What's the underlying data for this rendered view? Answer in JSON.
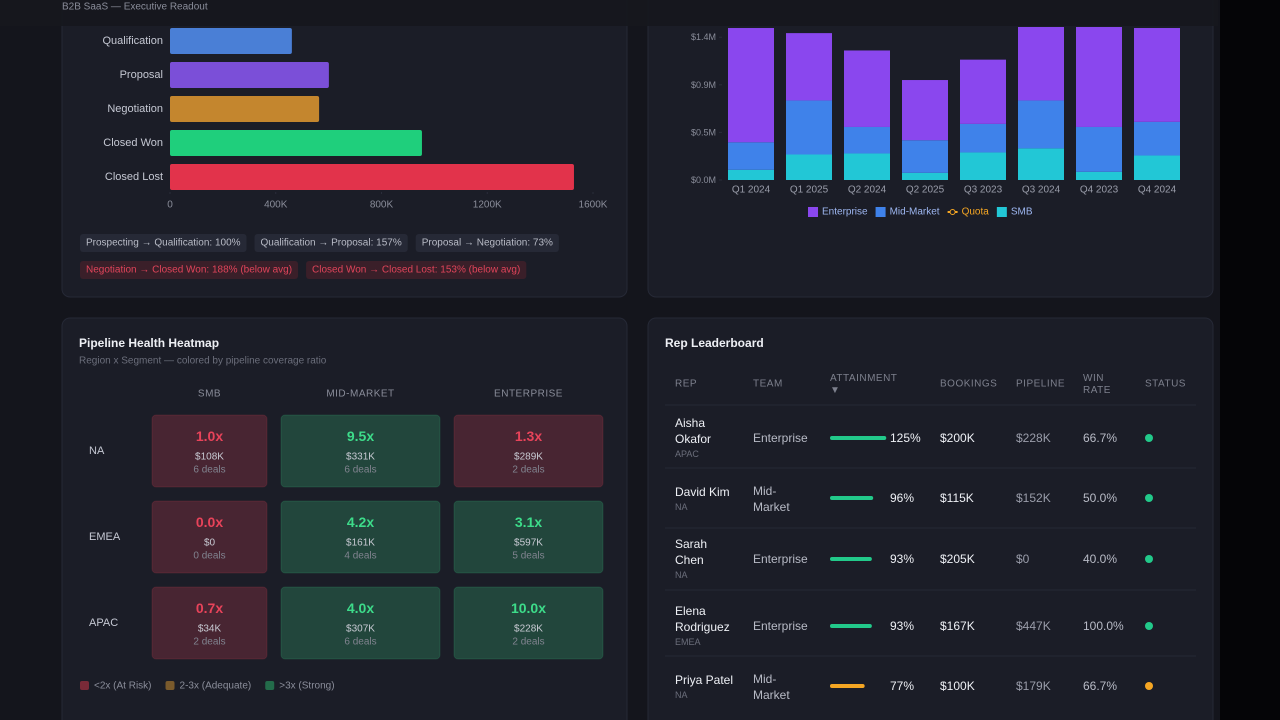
{
  "header": {
    "title": "B2B SaaS — Executive Readout"
  },
  "chart_data": [
    {
      "type": "bar",
      "orientation": "horizontal",
      "categories": [
        "Qualification",
        "Proposal",
        "Negotiation",
        "Closed Won",
        "Closed Lost"
      ],
      "values": [
        461000,
        601000,
        564000,
        953000,
        1528000
      ],
      "colors": [
        "#4a7fd6",
        "#7b4fd8",
        "#c4862e",
        "#1fcf7c",
        "#e2334b"
      ],
      "xlim": [
        0,
        1600000
      ],
      "xticks": [
        0,
        {
          "value": 400000,
          "label": "400K"
        },
        {
          "value": 800000,
          "label": "800K"
        },
        {
          "value": 1200000,
          "label": "1200K"
        },
        {
          "value": 1600000,
          "label": "1600K"
        }
      ]
    },
    {
      "type": "stacked_bar",
      "categories": [
        "Q1 2024",
        "Q1 2025",
        "Q2 2024",
        "Q2 2025",
        "Q3 2023",
        "Q3 2024",
        "Q4 2023",
        "Q4 2024"
      ],
      "series": [
        {
          "name": "SMB",
          "color": "#22c7d6",
          "values": [
            0.1,
            0.25,
            0.26,
            0.07,
            0.27,
            0.31,
            0.08,
            0.24
          ]
        },
        {
          "name": "Mid-Market",
          "color": "#3f82ea",
          "values": [
            0.27,
            0.53,
            0.26,
            0.32,
            0.28,
            0.47,
            0.44,
            0.33
          ]
        },
        {
          "name": "Enterprise",
          "color": "#8a47ee",
          "values": [
            1.12,
            0.66,
            0.75,
            0.59,
            0.63,
            0.72,
            0.98,
            0.92
          ]
        },
        {
          "name": "Quota",
          "color": "#f5a623",
          "type": "line",
          "values": [
            null,
            null,
            null,
            null,
            null,
            null,
            null,
            null
          ]
        }
      ],
      "ylim": [
        0,
        1.5
      ],
      "yticks": [
        {
          "value": 0,
          "label": "$0.0M"
        },
        {
          "value": 0.4667,
          "label": "$0.5M"
        },
        {
          "value": 0.9333,
          "label": "$0.9M"
        },
        {
          "value": 1.4,
          "label": "$1.4M"
        }
      ]
    }
  ],
  "conversions": [
    {
      "text": "Prospecting → Qualification: 100%",
      "alert": false
    },
    {
      "text": "Qualification → Proposal: 157%",
      "alert": false
    },
    {
      "text": "Proposal → Negotiation: 73%",
      "alert": false
    },
    {
      "text": "Negotiation → Closed Won: 188% (below avg)",
      "alert": true
    },
    {
      "text": "Closed Won → Closed Lost: 153% (below avg)",
      "alert": true
    }
  ],
  "heatmap": {
    "title": "Pipeline Health Heatmap",
    "subtitle": "Region x Segment — colored by pipeline coverage ratio",
    "columns": [
      "SMB",
      "MID-MARKET",
      "ENTERPRISE"
    ],
    "rows": [
      {
        "label": "NA",
        "cells": [
          {
            "ratio": "1.0x",
            "amount": "$108K",
            "deals": "6 deals",
            "color": "#e8435a"
          },
          {
            "ratio": "9.5x",
            "amount": "$331K",
            "deals": "6 deals",
            "color": "#3ddc8a"
          },
          {
            "ratio": "1.3x",
            "amount": "$289K",
            "deals": "2 deals",
            "color": "#e8435a"
          }
        ]
      },
      {
        "label": "EMEA",
        "cells": [
          {
            "ratio": "0.0x",
            "amount": "$0",
            "deals": "0 deals",
            "color": "#e8435a"
          },
          {
            "ratio": "4.2x",
            "amount": "$161K",
            "deals": "4 deals",
            "color": "#3ddc8a"
          },
          {
            "ratio": "3.1x",
            "amount": "$597K",
            "deals": "5 deals",
            "color": "#3ddc8a"
          }
        ]
      },
      {
        "label": "APAC",
        "cells": [
          {
            "ratio": "0.7x",
            "amount": "$34K",
            "deals": "2 deals",
            "color": "#e8435a"
          },
          {
            "ratio": "4.0x",
            "amount": "$307K",
            "deals": "6 deals",
            "color": "#3ddc8a"
          },
          {
            "ratio": "10.0x",
            "amount": "$228K",
            "deals": "2 deals",
            "color": "#3ddc8a"
          }
        ]
      }
    ],
    "legend": [
      {
        "label": "<2x (At Risk)",
        "color": "#7a2a38"
      },
      {
        "label": "2-3x (Adequate)",
        "color": "#7a5a2c"
      },
      {
        "label": ">3x (Strong)",
        "color": "#236b4a"
      }
    ]
  },
  "leaderboard": {
    "title": "Rep Leaderboard",
    "columns": [
      "REP",
      "TEAM",
      "ATTAINMENT ▼",
      "BOOKINGS",
      "PIPELINE",
      "WIN RATE",
      "STATUS"
    ],
    "rows": [
      {
        "rep": "Aisha Okafor",
        "region": "APAC",
        "team": "Enterprise",
        "attainment": "125%",
        "bookings": "$200K",
        "pipeline": "$228K",
        "win_rate": "66.7%",
        "color": "#22c98a"
      },
      {
        "rep": "David Kim",
        "region": "NA",
        "team": "Mid-Market",
        "attainment": "96%",
        "bookings": "$115K",
        "pipeline": "$152K",
        "win_rate": "50.0%",
        "color": "#22c98a"
      },
      {
        "rep": "Sarah Chen",
        "region": "NA",
        "team": "Enterprise",
        "attainment": "93%",
        "bookings": "$205K",
        "pipeline": "$0",
        "win_rate": "40.0%",
        "color": "#22c98a"
      },
      {
        "rep": "Elena Rodriguez",
        "region": "EMEA",
        "team": "Enterprise",
        "attainment": "93%",
        "bookings": "$167K",
        "pipeline": "$447K",
        "win_rate": "100.0%",
        "color": "#22c98a"
      },
      {
        "rep": "Priya Patel",
        "region": "NA",
        "team": "Mid-Market",
        "attainment": "77%",
        "bookings": "$100K",
        "pipeline": "$179K",
        "win_rate": "66.7%",
        "color": "#f5a623"
      }
    ]
  }
}
